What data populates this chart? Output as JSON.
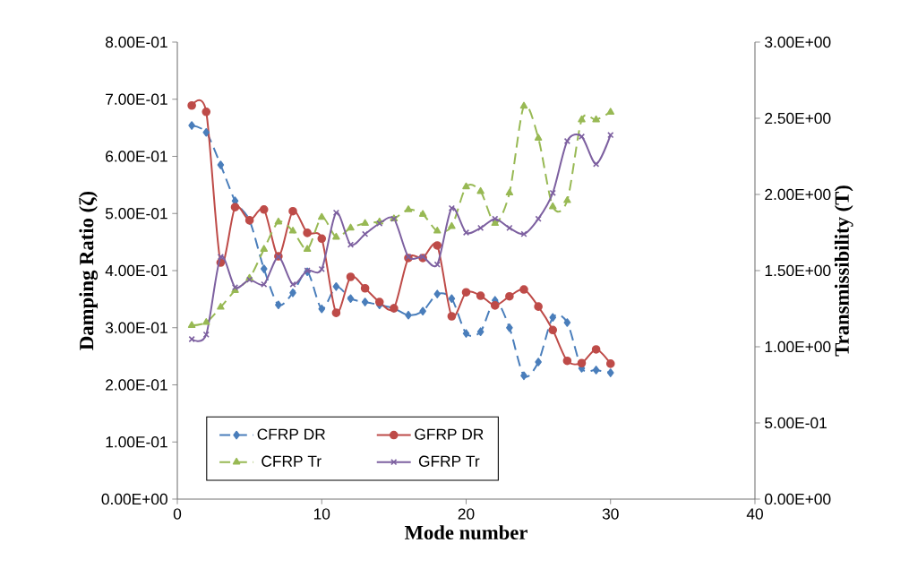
{
  "chart_data": {
    "type": "line",
    "xlabel": "Mode number",
    "ylabel": "Damping Ratio (ζ)",
    "y2label": "Transmissibility  (T)",
    "x": [
      1,
      2,
      3,
      4,
      5,
      6,
      7,
      8,
      9,
      10,
      11,
      12,
      13,
      14,
      15,
      16,
      17,
      18,
      19,
      20,
      21,
      22,
      23,
      24,
      25,
      26,
      27,
      28,
      29,
      30
    ],
    "series": [
      {
        "name": "CFRP DR",
        "color": "#4a7ebb",
        "marker": "diamond",
        "line_style": "dashed",
        "values": [
          0.654,
          0.642,
          0.585,
          0.522,
          0.488,
          0.403,
          0.34,
          0.361,
          0.398,
          0.333,
          0.372,
          0.351,
          0.345,
          0.34,
          0.334,
          0.322,
          0.329,
          0.359,
          0.351,
          0.29,
          0.293,
          0.348,
          0.3,
          0.216,
          0.24,
          0.318,
          0.309,
          0.229,
          0.226,
          0.221
        ]
      },
      {
        "name": "GFRP DR",
        "color": "#be4b48",
        "marker": "circle",
        "line_style": "solid",
        "values": [
          0.689,
          0.678,
          0.414,
          0.511,
          0.488,
          0.507,
          0.425,
          0.504,
          0.466,
          0.456,
          0.326,
          0.389,
          0.369,
          0.345,
          0.334,
          0.422,
          0.422,
          0.444,
          0.32,
          0.362,
          0.356,
          0.339,
          0.355,
          0.367,
          0.337,
          0.296,
          0.242,
          0.238,
          0.262,
          0.237
        ]
      },
      {
        "name": "CFRP Tr",
        "color": "#98b954",
        "marker": "triangle",
        "line_style": "dashed",
        "axis": "y2",
        "values": [
          1.14,
          1.16,
          1.26,
          1.37,
          1.45,
          1.64,
          1.82,
          1.76,
          1.64,
          1.85,
          1.72,
          1.78,
          1.81,
          1.82,
          1.84,
          1.9,
          1.87,
          1.76,
          1.79,
          2.05,
          2.02,
          1.81,
          2.01,
          2.58,
          2.37,
          1.92,
          1.96,
          2.49,
          2.49,
          2.54
        ]
      },
      {
        "name": "GFRP Tr",
        "color": "#7d60a0",
        "marker": "cross",
        "line_style": "solid",
        "axis": "y2",
        "values": [
          1.05,
          1.08,
          1.59,
          1.39,
          1.44,
          1.41,
          1.59,
          1.41,
          1.5,
          1.51,
          1.88,
          1.67,
          1.74,
          1.81,
          1.84,
          1.59,
          1.59,
          1.54,
          1.91,
          1.75,
          1.78,
          1.84,
          1.78,
          1.74,
          1.84,
          2.01,
          2.35,
          2.38,
          2.2,
          2.39
        ]
      }
    ],
    "xlim": [
      0,
      40
    ],
    "xticks": [
      0,
      10,
      20,
      30,
      40
    ],
    "ylim": [
      0,
      0.8
    ],
    "yticks": [
      {
        "value": 0,
        "label": "0.00E+00"
      },
      {
        "value": 0.1,
        "label": "1.00E-01"
      },
      {
        "value": 0.2,
        "label": "2.00E-01"
      },
      {
        "value": 0.3,
        "label": "3.00E-01"
      },
      {
        "value": 0.4,
        "label": "4.00E-01"
      },
      {
        "value": 0.5,
        "label": "5.00E-01"
      },
      {
        "value": 0.6,
        "label": "6.00E-01"
      },
      {
        "value": 0.7,
        "label": "7.00E-01"
      },
      {
        "value": 0.8,
        "label": "8.00E-01"
      }
    ],
    "y2lim": [
      0,
      3
    ],
    "y2ticks": [
      {
        "value": 0,
        "label": "0.00E+00"
      },
      {
        "value": 0.5,
        "label": "5.00E-01"
      },
      {
        "value": 1,
        "label": "1.00E+00"
      },
      {
        "value": 1.5,
        "label": "1.50E+00"
      },
      {
        "value": 2,
        "label": "2.00E+00"
      },
      {
        "value": 2.5,
        "label": "2.50E+00"
      },
      {
        "value": 3,
        "label": "3.00E+00"
      }
    ],
    "grid": false,
    "legend": "bottom left"
  }
}
